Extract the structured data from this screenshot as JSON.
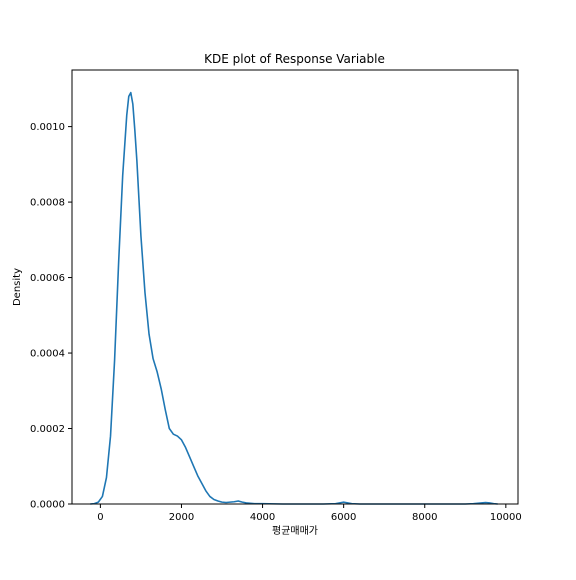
{
  "chart_data": {
    "type": "line",
    "title": "KDE plot of Response Variable",
    "xlabel": "평균매매가",
    "ylabel": "Density",
    "xlim": [
      -700,
      10300
    ],
    "ylim": [
      0,
      0.00115
    ],
    "x_ticks": [
      0,
      2000,
      4000,
      6000,
      8000,
      10000
    ],
    "x_tick_labels": [
      "0",
      "2000",
      "4000",
      "6000",
      "8000",
      "10000"
    ],
    "y_ticks": [
      0,
      0.0002,
      0.0004,
      0.0006,
      0.0008,
      0.001
    ],
    "y_tick_labels": [
      "0.0000",
      "0.0002",
      "0.0004",
      "0.0006",
      "0.0008",
      "0.0010"
    ],
    "grid": false,
    "colors": {
      "line": "#1f77b4",
      "axes": "#000000"
    },
    "series": [
      {
        "x": [
          -250,
          -150,
          -50,
          50,
          150,
          250,
          350,
          450,
          550,
          650,
          700,
          750,
          800,
          850,
          900,
          950,
          1000,
          1100,
          1200,
          1300,
          1400,
          1500,
          1600,
          1700,
          1800,
          1900,
          2000,
          2100,
          2200,
          2300,
          2400,
          2500,
          2600,
          2700,
          2800,
          2900,
          3000,
          3100,
          3200,
          3300,
          3400,
          3500,
          3600,
          3700,
          3800,
          4000,
          4500,
          5000,
          5500,
          5800,
          5900,
          6000,
          6100,
          6200,
          6400,
          7000,
          8000,
          9000,
          9200,
          9400,
          9500,
          9600,
          9700,
          9800
        ],
        "y": [
          0,
          1e-06,
          5e-06,
          2e-05,
          7e-05,
          0.00018,
          0.00038,
          0.00064,
          0.00087,
          0.00103,
          0.00108,
          0.00109,
          0.00106,
          0.00099,
          0.00091,
          0.00081,
          0.00071,
          0.00056,
          0.00045,
          0.000385,
          0.00035,
          0.000305,
          0.00025,
          0.0002,
          0.000185,
          0.00018,
          0.00017,
          0.00015,
          0.000125,
          0.0001,
          7.5e-05,
          5.5e-05,
          3.5e-05,
          2e-05,
          1.2e-05,
          8e-06,
          5e-06,
          4e-06,
          5e-06,
          6e-06,
          8e-06,
          5e-06,
          3e-06,
          2e-06,
          1e-06,
          1e-06,
          0,
          0,
          0,
          1e-06,
          3e-06,
          5e-06,
          3e-06,
          1e-06,
          0,
          0,
          0,
          0,
          1e-06,
          3e-06,
          4e-06,
          3e-06,
          1e-06,
          0
        ]
      }
    ]
  }
}
